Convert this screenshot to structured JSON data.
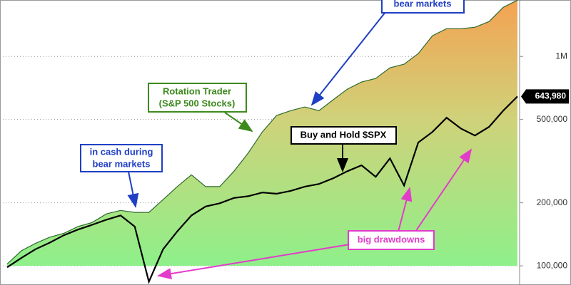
{
  "chart_data": {
    "type": "line",
    "log_scale": true,
    "grid": true,
    "ylim": [
      81000,
      1860000
    ],
    "yticks": [
      {
        "value": 100000,
        "label": "100,000"
      },
      {
        "value": 200000,
        "label": "200,000"
      },
      {
        "value": 500000,
        "label": "500,000"
      },
      {
        "value": 1000000,
        "label": "1M"
      }
    ],
    "series": [
      {
        "color": "#2e6b2e",
        "fill": true,
        "values": [
          102000,
          118000,
          128000,
          137000,
          143000,
          154000,
          161000,
          177000,
          184000,
          180000,
          180000,
          207000,
          239000,
          272000,
          239000,
          239000,
          283000,
          345000,
          436000,
          522000,
          551000,
          574000,
          551000,
          621000,
          698000,
          755000,
          785000,
          882000,
          918000,
          1032000,
          1255000,
          1357000,
          1357000,
          1378000,
          1468000,
          1716000,
          1857000
        ]
      },
      {
        "color": "#000000",
        "values": [
          98400,
          109000,
          120000,
          129000,
          140000,
          149000,
          157000,
          166000,
          174000,
          154000,
          84000,
          120000,
          146000,
          174000,
          192000,
          199000,
          211000,
          215000,
          224000,
          221000,
          228000,
          239000,
          246000,
          262000,
          283000,
          302000,
          266000,
          326000,
          242000,
          388000,
          436000,
          510000,
          453000,
          419000,
          461000,
          551000,
          643980
        ],
        "value_labels": [
          null,
          null,
          null,
          null,
          null,
          null,
          null,
          null,
          null,
          null,
          null,
          null,
          null,
          null,
          null,
          null,
          null,
          null,
          null,
          null,
          null,
          null,
          null,
          null,
          null,
          null,
          null,
          null,
          null,
          null,
          null,
          null,
          null,
          null,
          null,
          null,
          "643,980"
        ]
      }
    ],
    "annotations": [
      {
        "lines": [
          "bear markets"
        ]
      },
      {
        "lines": [
          "Rotation Trader",
          "(S&P 500 Stocks)"
        ]
      },
      {
        "lines": [
          "in cash during",
          "bear markets"
        ]
      },
      {
        "lines": [
          "Buy and Hold $SPX"
        ]
      },
      {
        "lines": [
          "big drawdowns"
        ]
      }
    ]
  }
}
